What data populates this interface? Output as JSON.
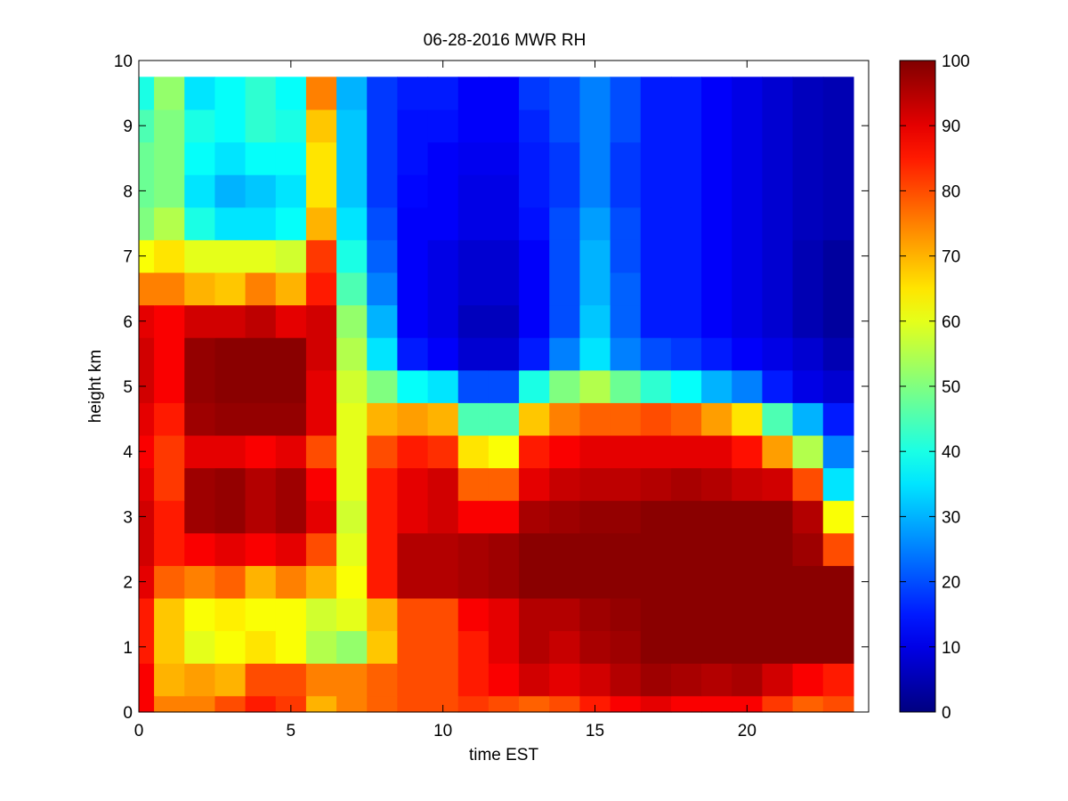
{
  "chart_data": {
    "type": "heatmap",
    "title": "06-28-2016 MWR RH",
    "xlabel": "time EST",
    "ylabel": "height km",
    "xlim": [
      0,
      24
    ],
    "ylim": [
      0,
      10
    ],
    "x_ticks": [
      0,
      5,
      10,
      15,
      20
    ],
    "y_ticks": [
      0,
      1,
      2,
      3,
      4,
      5,
      6,
      7,
      8,
      9,
      10
    ],
    "colorbar": {
      "colormap": "jet",
      "range": [
        0,
        100
      ],
      "ticks": [
        0,
        10,
        20,
        30,
        40,
        50,
        60,
        70,
        80,
        90,
        100
      ]
    },
    "time_hours": [
      0,
      1,
      2,
      3,
      4,
      5,
      6,
      7,
      8,
      9,
      10,
      11,
      12,
      13,
      14,
      15,
      16,
      17,
      18,
      19,
      20,
      21,
      22,
      23
    ],
    "height_levels_km": [
      0,
      0.5,
      1,
      1.5,
      2,
      2.5,
      3,
      3.5,
      4,
      4.5,
      5,
      5.5,
      6,
      6.5,
      7,
      7.5,
      8,
      8.5,
      9,
      9.5
    ],
    "rh_percent": [
      [
        88,
        75,
        75,
        80,
        85,
        82,
        70,
        75,
        78,
        80,
        80,
        82,
        80,
        78,
        80,
        85,
        88,
        90,
        88,
        88,
        88,
        82,
        78,
        80
      ],
      [
        88,
        70,
        72,
        70,
        80,
        80,
        75,
        75,
        78,
        80,
        80,
        85,
        88,
        92,
        90,
        92,
        95,
        97,
        96,
        95,
        96,
        92,
        88,
        85
      ],
      [
        85,
        68,
        60,
        62,
        65,
        62,
        55,
        52,
        68,
        80,
        80,
        85,
        90,
        95,
        93,
        96,
        97,
        99,
        99,
        99,
        99,
        99,
        99,
        99
      ],
      [
        85,
        68,
        62,
        64,
        62,
        62,
        58,
        60,
        70,
        80,
        80,
        88,
        90,
        95,
        95,
        97,
        98,
        99,
        99,
        99,
        99,
        99,
        99,
        99
      ],
      [
        90,
        78,
        75,
        78,
        70,
        75,
        70,
        62,
        85,
        95,
        95,
        96,
        97,
        99,
        99,
        99,
        99,
        99,
        99,
        99,
        99,
        99,
        99,
        99
      ],
      [
        92,
        85,
        88,
        90,
        88,
        90,
        80,
        60,
        85,
        95,
        95,
        96,
        97,
        99,
        99,
        99,
        99,
        99,
        99,
        99,
        99,
        99,
        97,
        80
      ],
      [
        92,
        85,
        97,
        98,
        95,
        97,
        90,
        58,
        85,
        90,
        92,
        88,
        88,
        96,
        97,
        98,
        98,
        99,
        99,
        99,
        99,
        99,
        95,
        62
      ],
      [
        90,
        82,
        97,
        98,
        95,
        97,
        88,
        60,
        85,
        90,
        92,
        78,
        78,
        90,
        93,
        94,
        94,
        95,
        96,
        95,
        93,
        92,
        80,
        35
      ],
      [
        88,
        82,
        90,
        90,
        88,
        90,
        80,
        60,
        80,
        85,
        83,
        65,
        62,
        85,
        88,
        90,
        90,
        90,
        90,
        90,
        86,
        72,
        55,
        25
      ],
      [
        90,
        85,
        97,
        98,
        98,
        98,
        90,
        60,
        70,
        72,
        70,
        45,
        45,
        68,
        75,
        78,
        78,
        80,
        78,
        72,
        65,
        45,
        30,
        15
      ],
      [
        92,
        88,
        98,
        99,
        99,
        99,
        90,
        58,
        50,
        38,
        35,
        20,
        20,
        40,
        50,
        55,
        48,
        42,
        38,
        30,
        25,
        15,
        10,
        8
      ],
      [
        92,
        88,
        98,
        99,
        99,
        99,
        92,
        55,
        35,
        15,
        12,
        8,
        8,
        15,
        25,
        35,
        25,
        20,
        18,
        15,
        12,
        10,
        8,
        5
      ],
      [
        90,
        88,
        92,
        92,
        94,
        90,
        92,
        52,
        30,
        12,
        10,
        6,
        6,
        12,
        20,
        32,
        22,
        15,
        15,
        12,
        10,
        8,
        5,
        3
      ],
      [
        75,
        75,
        70,
        68,
        75,
        70,
        85,
        45,
        25,
        12,
        10,
        8,
        8,
        12,
        20,
        30,
        22,
        15,
        15,
        12,
        10,
        8,
        5,
        3
      ],
      [
        62,
        65,
        60,
        60,
        60,
        58,
        82,
        40,
        22,
        12,
        10,
        8,
        8,
        12,
        20,
        30,
        20,
        15,
        15,
        12,
        10,
        8,
        5,
        3
      ],
      [
        50,
        55,
        40,
        35,
        35,
        38,
        70,
        35,
        20,
        12,
        12,
        10,
        10,
        14,
        20,
        28,
        20,
        15,
        15,
        12,
        10,
        8,
        6,
        5
      ],
      [
        48,
        50,
        35,
        30,
        32,
        35,
        65,
        32,
        18,
        13,
        12,
        10,
        10,
        15,
        18,
        25,
        18,
        15,
        15,
        12,
        10,
        8,
        6,
        5
      ],
      [
        48,
        50,
        38,
        35,
        38,
        38,
        65,
        32,
        18,
        14,
        12,
        11,
        11,
        15,
        18,
        25,
        18,
        15,
        15,
        12,
        10,
        8,
        6,
        5
      ],
      [
        45,
        50,
        40,
        38,
        42,
        40,
        68,
        32,
        18,
        14,
        14,
        12,
        12,
        16,
        20,
        25,
        20,
        15,
        15,
        12,
        10,
        8,
        6,
        5
      ],
      [
        40,
        52,
        35,
        38,
        42,
        38,
        75,
        30,
        18,
        15,
        15,
        12,
        12,
        18,
        20,
        25,
        20,
        15,
        15,
        12,
        10,
        8,
        6,
        5
      ]
    ]
  }
}
